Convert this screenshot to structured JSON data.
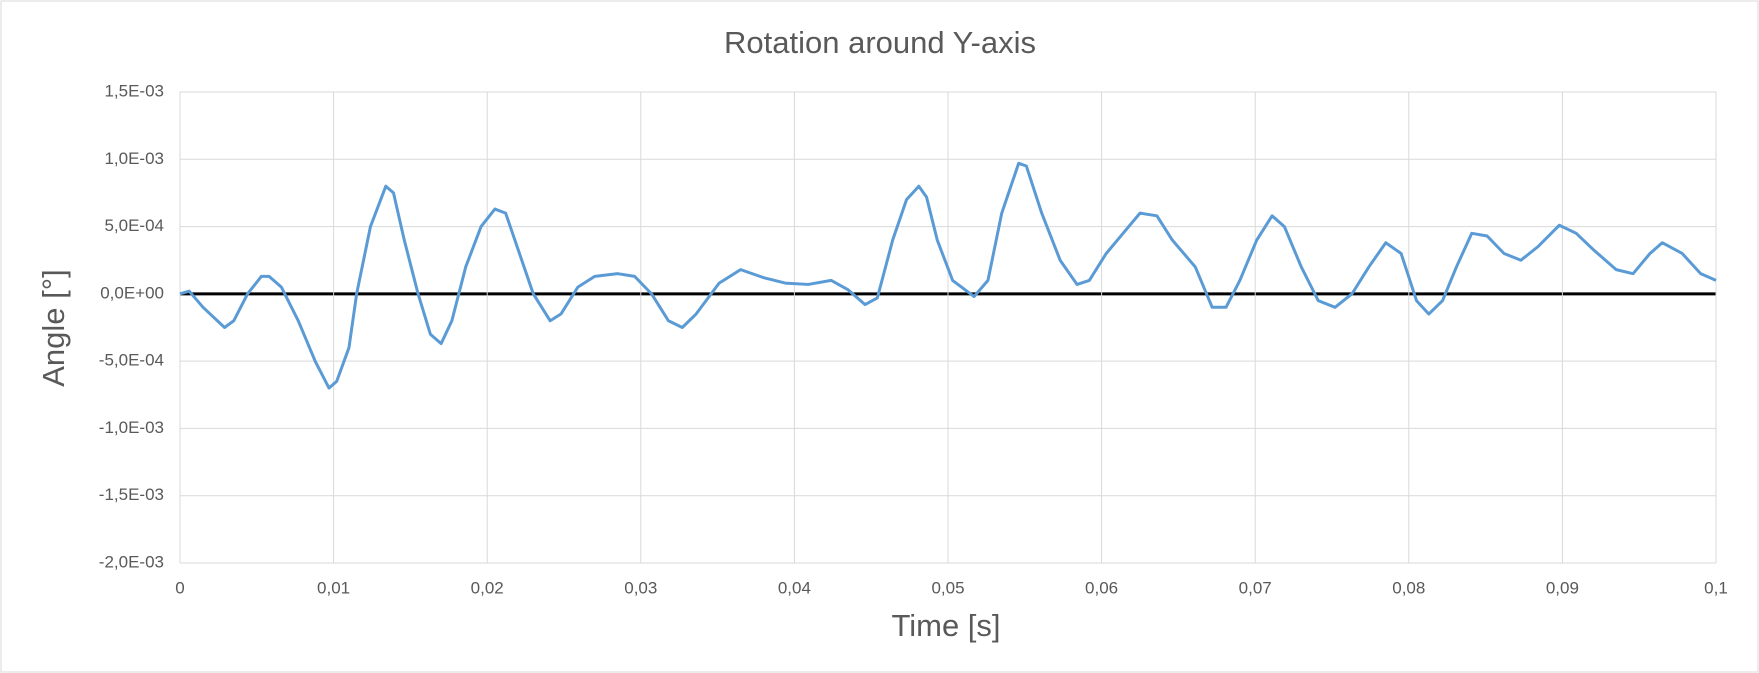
{
  "chart_data": {
    "type": "line",
    "title": "Rotation around Y-axis",
    "x_label": "Time [s]",
    "y_label": "Angle [°]",
    "x": [
      0,
      0.0006,
      0.0015,
      0.0029,
      0.0035,
      0.0044,
      0.0053,
      0.0058,
      0.0066,
      0.0077,
      0.0088,
      0.0097,
      0.0102,
      0.011,
      0.0115,
      0.0124,
      0.0134,
      0.0139,
      0.0146,
      0.0155,
      0.0163,
      0.017,
      0.0177,
      0.0186,
      0.0196,
      0.0205,
      0.0212,
      0.0221,
      0.023,
      0.0241,
      0.0248,
      0.0259,
      0.027,
      0.0285,
      0.0296,
      0.0307,
      0.0318,
      0.0327,
      0.0336,
      0.0351,
      0.0365,
      0.038,
      0.0394,
      0.0409,
      0.0424,
      0.0435,
      0.0446,
      0.0454,
      0.0464,
      0.0473,
      0.0481,
      0.0486,
      0.0493,
      0.0503,
      0.0517,
      0.0526,
      0.0535,
      0.0546,
      0.0551,
      0.0561,
      0.0573,
      0.0584,
      0.0592,
      0.0603,
      0.0614,
      0.0625,
      0.0636,
      0.0646,
      0.0661,
      0.0672,
      0.0681,
      0.069,
      0.0701,
      0.0711,
      0.0719,
      0.073,
      0.0741,
      0.0752,
      0.0763,
      0.0774,
      0.0785,
      0.0795,
      0.0805,
      0.0813,
      0.0822,
      0.0831,
      0.0841,
      0.0851,
      0.0862,
      0.0873,
      0.0884,
      0.0898,
      0.0909,
      0.092,
      0.0935,
      0.0946,
      0.0957,
      0.0965,
      0.0978,
      0.099,
      0.1
    ],
    "series": [
      {
        "name": "Rotation around Y-axis",
        "color": "#5b9bd5",
        "values": [
          0,
          2e-05,
          -0.0001,
          -0.00025,
          -0.0002,
          0,
          0.00013,
          0.00013,
          5e-05,
          -0.0002,
          -0.0005,
          -0.0007,
          -0.00065,
          -0.0004,
          0,
          0.0005,
          0.0008,
          0.00075,
          0.0004,
          0,
          -0.0003,
          -0.00037,
          -0.0002,
          0.0002,
          0.0005,
          0.00063,
          0.0006,
          0.0003,
          0,
          -0.0002,
          -0.00015,
          5e-05,
          0.00013,
          0.00015,
          0.00013,
          0,
          -0.0002,
          -0.00025,
          -0.00015,
          8e-05,
          0.00018,
          0.00012,
          8e-05,
          7e-05,
          0.0001,
          3e-05,
          -8e-05,
          -3e-05,
          0.0004,
          0.0007,
          0.0008,
          0.00072,
          0.0004,
          0.0001,
          -2e-05,
          0.0001,
          0.0006,
          0.00097,
          0.00095,
          0.0006,
          0.00025,
          7e-05,
          0.0001,
          0.0003,
          0.00045,
          0.0006,
          0.00058,
          0.0004,
          0.0002,
          -0.0001,
          -0.0001,
          0.0001,
          0.0004,
          0.00058,
          0.0005,
          0.0002,
          -5e-05,
          -0.0001,
          0,
          0.0002,
          0.00038,
          0.0003,
          -5e-05,
          -0.00015,
          -5e-05,
          0.0002,
          0.00045,
          0.00043,
          0.0003,
          0.00025,
          0.00035,
          0.00051,
          0.00045,
          0.00033,
          0.00018,
          0.00015,
          0.0003,
          0.00038,
          0.0003,
          0.00015,
          0.0001
        ]
      }
    ],
    "xlim": [
      0,
      0.1
    ],
    "xticks": [
      0,
      {
        "value": 0.01,
        "label": "0,01"
      },
      {
        "value": 0.02,
        "label": "0,02"
      },
      {
        "value": 0.03,
        "label": "0,03"
      },
      {
        "value": 0.04,
        "label": "0,04"
      },
      {
        "value": 0.05,
        "label": "0,05"
      },
      {
        "value": 0.06,
        "label": "0,06"
      },
      {
        "value": 0.07,
        "label": "0,07"
      },
      {
        "value": 0.08,
        "label": "0,08"
      },
      {
        "value": 0.09,
        "label": "0,09"
      },
      {
        "value": 0.1,
        "label": "0,1"
      }
    ],
    "ylim": [
      -0.002,
      0.0015
    ],
    "yticks": [
      {
        "value": -0.002,
        "label": "-2,0E-03"
      },
      {
        "value": -0.0015,
        "label": "-1,5E-03"
      },
      {
        "value": -0.001,
        "label": "-1,0E-03"
      },
      {
        "value": -0.0005,
        "label": "-5,0E-04"
      },
      {
        "value": 0,
        "label": "0,0E+00"
      },
      {
        "value": 0.0005,
        "label": "5,0E-04"
      },
      {
        "value": 0.001,
        "label": "1,0E-03"
      },
      {
        "value": 0.0015,
        "label": "1,5E-03"
      }
    ],
    "grid": true
  }
}
